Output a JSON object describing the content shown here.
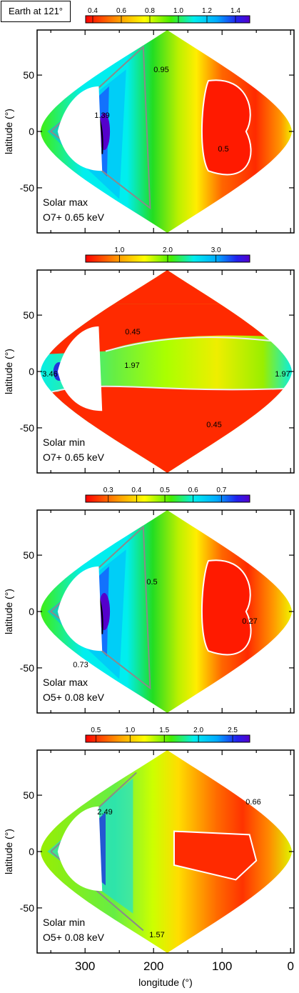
{
  "header": {
    "earth_label": "Earth at 121°"
  },
  "chart_data": [
    {
      "type": "heatmap",
      "panel_label": "Solar max",
      "ion_label": "O7+ 0.65 keV",
      "colorbar": {
        "ticks": [
          "0.4",
          "0.6",
          "0.8",
          "1.0",
          "1.2",
          "1.4"
        ],
        "range": [
          0.35,
          1.5
        ]
      },
      "ylabel": "latitude (°)",
      "xlim": [
        370,
        -5
      ],
      "ylim": [
        -90,
        90
      ],
      "yticks": [
        "50",
        "0",
        "-50"
      ],
      "contours": [
        {
          "label": "0.95",
          "color": "#8a8a8a"
        },
        {
          "label": "1.39",
          "color": "#000000"
        },
        {
          "label": "0.5",
          "color": "#ffffff"
        }
      ]
    },
    {
      "type": "heatmap",
      "panel_label": "Solar min",
      "ion_label": "O7+ 0.65 keV",
      "colorbar": {
        "ticks": [
          "1.0",
          "2.0",
          "3.0"
        ],
        "range": [
          0.3,
          3.7
        ]
      },
      "ylabel": "latitude (°)",
      "xlim": [
        370,
        -5
      ],
      "ylim": [
        -90,
        90
      ],
      "yticks": [
        "50",
        "0",
        "-50"
      ],
      "contours": [
        {
          "label": "0.45",
          "color": "#ffffff"
        },
        {
          "label": "1.97",
          "color": "#8a8a8a"
        },
        {
          "label": "3.46",
          "color": "#000000"
        },
        {
          "label": "1.97",
          "color": "#8a8a8a"
        },
        {
          "label": "0.45",
          "color": "#ffffff"
        }
      ]
    },
    {
      "type": "heatmap",
      "panel_label": "Solar max",
      "ion_label": "O5+ 0.08 keV",
      "colorbar": {
        "ticks": [
          "0.3",
          "0.4",
          "0.5",
          "0.6",
          "0.7"
        ],
        "range": [
          0.22,
          0.8
        ]
      },
      "ylabel": "latitude (°)",
      "xlim": [
        370,
        -5
      ],
      "ylim": [
        -90,
        90
      ],
      "yticks": [
        "50",
        "0",
        "-50"
      ],
      "contours": [
        {
          "label": "0.5",
          "color": "#8a8a8a"
        },
        {
          "label": "0.73",
          "color": "#000000"
        },
        {
          "label": "0.27",
          "color": "#ffffff"
        }
      ]
    },
    {
      "type": "heatmap",
      "panel_label": "Solar min",
      "ion_label": "O5+ 0.08 keV",
      "colorbar": {
        "ticks": [
          "0.5",
          "1.0",
          "1.5",
          "2.0",
          "2.5"
        ],
        "range": [
          0.35,
          2.75
        ]
      },
      "ylabel": "latitude (°)",
      "xlabel": "longitude (°)",
      "xlim": [
        370,
        -5
      ],
      "ylim": [
        -90,
        90
      ],
      "yticks": [
        "50",
        "0",
        "-50"
      ],
      "xticks": [
        "300",
        "200",
        "100",
        "0"
      ],
      "contours": [
        {
          "label": "2.49",
          "color": "#000000"
        },
        {
          "label": "1.57",
          "color": "#8a8a8a"
        },
        {
          "label": "0.66",
          "color": "#ffffff"
        }
      ]
    }
  ]
}
